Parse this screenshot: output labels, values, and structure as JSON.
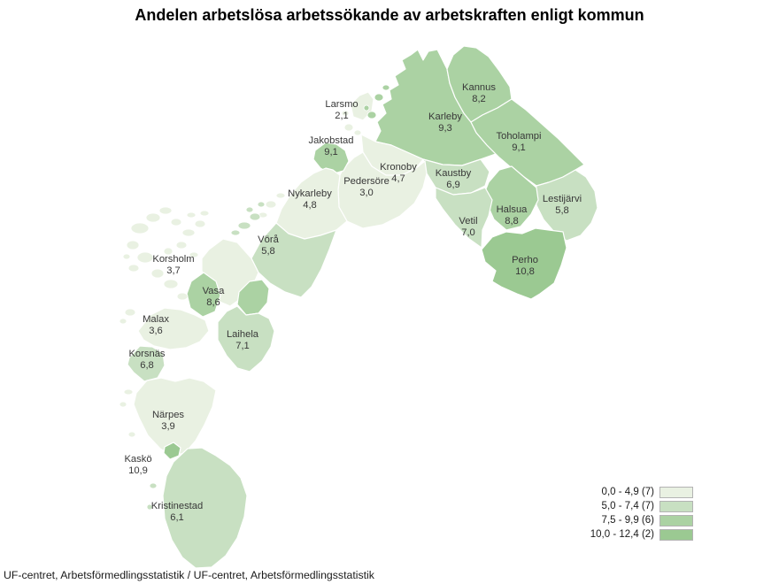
{
  "title": "Andelen arbetslösa arbetssökande av arbetskraften enligt kommun",
  "source_line": "UF-centret, Arbetsförmedlingsstatistik / UF-centret, Arbetsförmedlingsstatistik",
  "legend": {
    "classes": [
      {
        "label": "0,0 - 4,9 (7)",
        "color": "#e9f1e2"
      },
      {
        "label": "5,0 - 7,4 (7)",
        "color": "#c8e0c2"
      },
      {
        "label": "7,5 - 9,9 (6)",
        "color": "#abd2a3"
      },
      {
        "label": "10,0 - 12,4 (2)",
        "color": "#9bc992"
      }
    ],
    "swatch_border_color": "#b3b3b3"
  },
  "chart_data": {
    "type": "choropleth",
    "title": "Andelen arbetslösa arbetssökande av arbetskraften enligt kommun",
    "class_ranges": [
      "0,0 - 4,9",
      "5,0 - 7,4",
      "7,5 - 9,9",
      "10,0 - 12,4"
    ],
    "class_counts": [
      7,
      7,
      6,
      2
    ],
    "municipalities": [
      {
        "id": "kannus",
        "name": "Kannus",
        "value": "8,2",
        "class_index": 2
      },
      {
        "id": "larsmo",
        "name": "Larsmo",
        "value": "2,1",
        "class_index": 0
      },
      {
        "id": "karleby",
        "name": "Karleby",
        "value": "9,3",
        "class_index": 2
      },
      {
        "id": "toholampi",
        "name": "Toholampi",
        "value": "9,1",
        "class_index": 2
      },
      {
        "id": "jakobstad",
        "name": "Jakobstad",
        "value": "9,1",
        "class_index": 2
      },
      {
        "id": "kronoby",
        "name": "Kronoby",
        "value": "4,7",
        "class_index": 0
      },
      {
        "id": "pedersore",
        "name": "Pedersöre",
        "value": "3,0",
        "class_index": 0
      },
      {
        "id": "kaustby",
        "name": "Kaustby",
        "value": "6,9",
        "class_index": 1
      },
      {
        "id": "nykarleby",
        "name": "Nykarleby",
        "value": "4,8",
        "class_index": 0
      },
      {
        "id": "lestijarvi",
        "name": "Lestijärvi",
        "value": "5,8",
        "class_index": 1
      },
      {
        "id": "halsua",
        "name": "Halsua",
        "value": "8,8",
        "class_index": 2
      },
      {
        "id": "vetil",
        "name": "Vetil",
        "value": "7,0",
        "class_index": 1
      },
      {
        "id": "vora",
        "name": "Vörå",
        "value": "5,8",
        "class_index": 1
      },
      {
        "id": "perho",
        "name": "Perho",
        "value": "10,8",
        "class_index": 3
      },
      {
        "id": "korsholm",
        "name": "Korsholm",
        "value": "3,7",
        "class_index": 0
      },
      {
        "id": "vasa",
        "name": "Vasa",
        "value": "8,6",
        "class_index": 2
      },
      {
        "id": "malax",
        "name": "Malax",
        "value": "3,6",
        "class_index": 0
      },
      {
        "id": "laihela",
        "name": "Laihela",
        "value": "7,1",
        "class_index": 1
      },
      {
        "id": "korsnas",
        "name": "Korsnäs",
        "value": "6,8",
        "class_index": 1
      },
      {
        "id": "narpes",
        "name": "Närpes",
        "value": "3,9",
        "class_index": 0
      },
      {
        "id": "kasko",
        "name": "Kaskö",
        "value": "10,9",
        "class_index": 3
      },
      {
        "id": "kristinestad",
        "name": "Kristinestad",
        "value": "6,1",
        "class_index": 1
      }
    ]
  }
}
